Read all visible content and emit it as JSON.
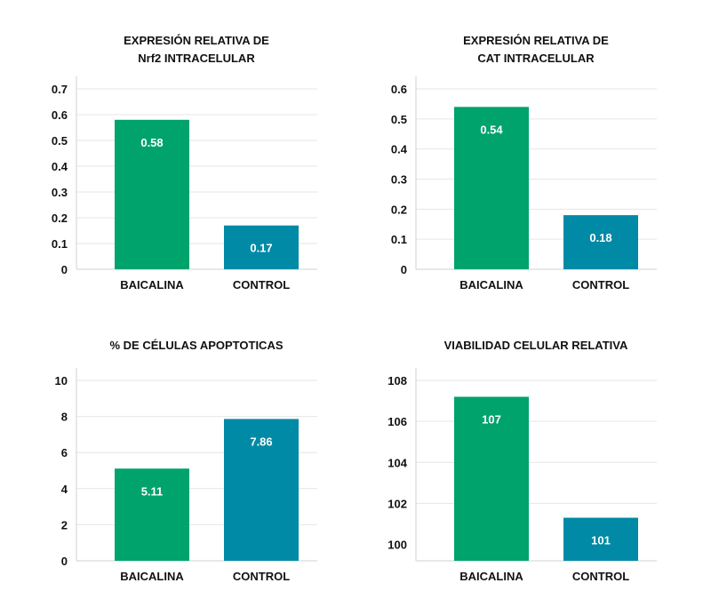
{
  "chart_data": [
    {
      "type": "bar",
      "title": "EXPRESIÓN RELATIVA DE\nNrf2 INTRACELULAR",
      "categories": [
        "BAICALINA",
        "CONTROL"
      ],
      "values": [
        0.58,
        0.17
      ],
      "data_labels": [
        "0.58",
        "0.17"
      ],
      "ylim": [
        0,
        0.7
      ],
      "yticks": [
        "0",
        "0.1",
        "0.2",
        "0.3",
        "0.4",
        "0.5",
        "0.6",
        "0.7"
      ],
      "bar_colors": [
        "#00a36c",
        "#008aa6"
      ],
      "grid": true
    },
    {
      "type": "bar",
      "title": "EXPRESIÓN RELATIVA DE\nCAT INTRACELULAR",
      "categories": [
        "BAICALINA",
        "CONTROL"
      ],
      "values": [
        0.54,
        0.18
      ],
      "data_labels": [
        "0.54",
        "0.18"
      ],
      "ylim": [
        0,
        0.6
      ],
      "yticks": [
        "0",
        "0.1",
        "0.2",
        "0.3",
        "0.4",
        "0.5",
        "0.6"
      ],
      "bar_colors": [
        "#00a36c",
        "#008aa6"
      ],
      "grid": true
    },
    {
      "type": "bar",
      "title": "% DE CÉLULAS APOPTOTICAS",
      "categories": [
        "BAICALINA",
        "CONTROL"
      ],
      "values": [
        5.11,
        7.86
      ],
      "data_labels": [
        "5.11",
        "7.86"
      ],
      "ylim": [
        0,
        10
      ],
      "yticks": [
        "0",
        "2",
        "4",
        "6",
        "8",
        "10"
      ],
      "bar_colors": [
        "#00a36c",
        "#008aa6"
      ],
      "grid": true
    },
    {
      "type": "bar",
      "title": "VIABILIDAD CELULAR RELATIVA",
      "categories": [
        "BAICALINA",
        "CONTROL"
      ],
      "values": [
        107.2,
        101.3
      ],
      "data_labels": [
        "107",
        "101"
      ],
      "ylim": [
        99.2,
        108
      ],
      "yticks": [
        "100",
        "102",
        "104",
        "106",
        "108"
      ],
      "bar_colors": [
        "#00a36c",
        "#008aa6"
      ],
      "grid": true
    }
  ]
}
